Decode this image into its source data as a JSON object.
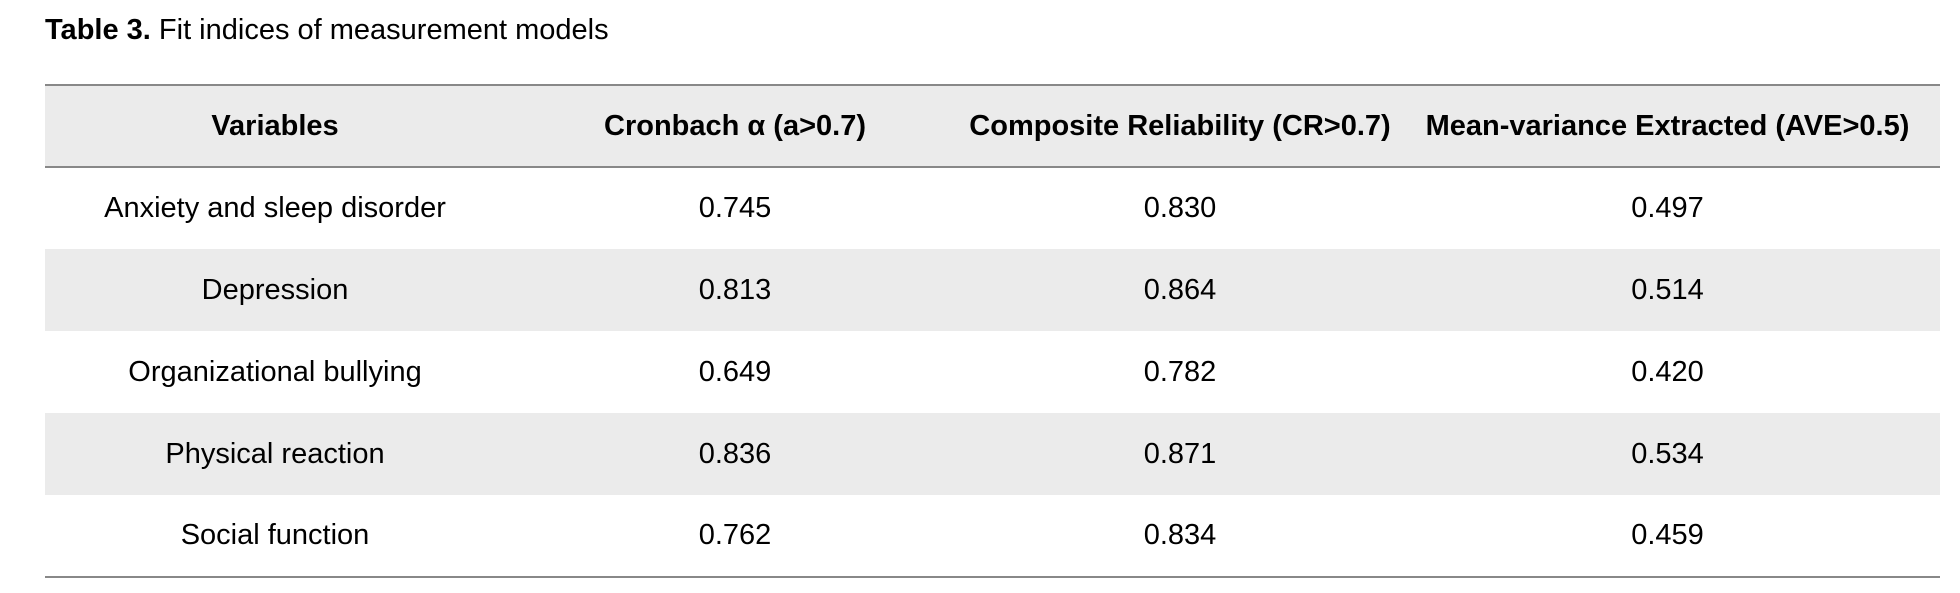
{
  "caption": {
    "label": "Table 3.",
    "text": "Fit indices of measurement models"
  },
  "table": {
    "headers": [
      "Variables",
      "Cronbach α (a>0.7)",
      "Composite Reliability (CR>0.7)",
      "Mean-variance Extracted (AVE>0.5)"
    ],
    "rows": [
      [
        "Anxiety and sleep disorder",
        "0.745",
        "0.830",
        "0.497"
      ],
      [
        "Depression",
        "0.813",
        "0.864",
        "0.514"
      ],
      [
        "Organizational bullying",
        "0.649",
        "0.782",
        "0.420"
      ],
      [
        "Physical reaction",
        "0.836",
        "0.871",
        "0.534"
      ],
      [
        "Social function",
        "0.762",
        "0.834",
        "0.459"
      ]
    ]
  },
  "colors": {
    "stripe": "#ebebeb",
    "rule": "#888888"
  }
}
